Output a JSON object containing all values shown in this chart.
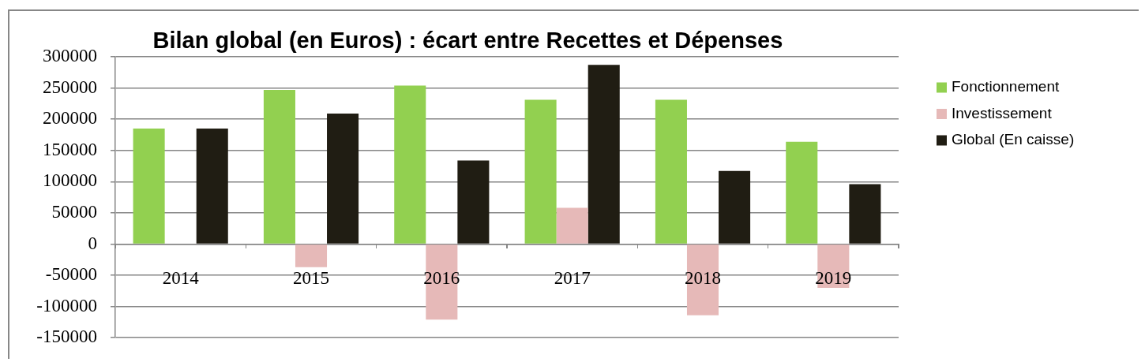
{
  "chart_data": {
    "type": "bar",
    "title": "Bilan global (en Euros) : écart entre Recettes et Dépenses",
    "categories": [
      "2014",
      "2015",
      "2016",
      "2017",
      "2018",
      "2019"
    ],
    "series": [
      {
        "name": "Fonctionnement",
        "color": "#92d050",
        "values": [
          185000,
          247000,
          254000,
          231000,
          231000,
          164000
        ]
      },
      {
        "name": "Investissement",
        "color": "#e6b9b8",
        "values": [
          null,
          -37000,
          -121000,
          58000,
          -114000,
          -70000
        ]
      },
      {
        "name": "Global (En caisse)",
        "color": "#201d13",
        "values": [
          185000,
          209000,
          134000,
          287000,
          117000,
          96000
        ]
      }
    ],
    "ylim": [
      -150000,
      300000
    ],
    "yticks": [
      -150000,
      -100000,
      -50000,
      0,
      50000,
      100000,
      150000,
      200000,
      250000,
      300000
    ],
    "grid": "y",
    "legend": "right"
  }
}
